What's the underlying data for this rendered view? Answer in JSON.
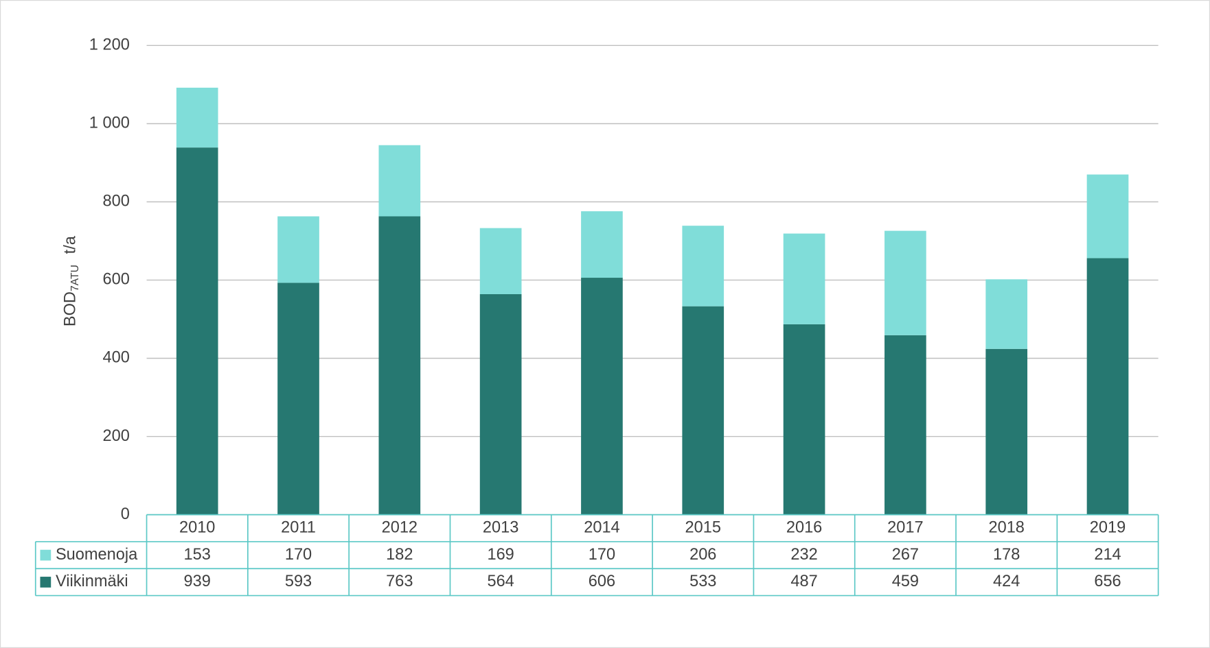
{
  "chart_data": {
    "type": "stacked_bar",
    "y_label_parts": [
      "BOD",
      "7ATU",
      "t/a"
    ],
    "categories": [
      "2010",
      "2011",
      "2012",
      "2013",
      "2014",
      "2015",
      "2016",
      "2017",
      "2018",
      "2019"
    ],
    "series": [
      {
        "name": "Suomenoja",
        "color": "#80ddd9",
        "values": [
          153,
          170,
          182,
          169,
          170,
          206,
          232,
          267,
          178,
          214
        ]
      },
      {
        "name": "Viikinmäki",
        "color": "#267871",
        "values": [
          939,
          593,
          763,
          564,
          606,
          533,
          487,
          459,
          424,
          656
        ]
      }
    ],
    "ylim": [
      0,
      1200
    ],
    "yticks": [
      0,
      200,
      400,
      600,
      800,
      {
        "value": 1000,
        "label": "1 000"
      },
      {
        "value": 1200,
        "label": "1 200"
      }
    ],
    "grid": true
  }
}
